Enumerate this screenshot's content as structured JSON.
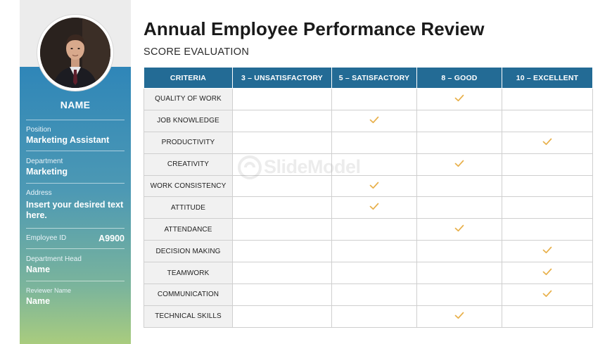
{
  "sidebar": {
    "name_heading": "NAME",
    "fields": [
      {
        "label": "Position",
        "value": "Marketing Assistant"
      },
      {
        "label": "Department",
        "value": "Marketing"
      },
      {
        "label": "Address",
        "value": "Insert your desired text here."
      },
      {
        "label": "Employee ID",
        "value": "A9900"
      },
      {
        "label": "Department Head",
        "value": "Name"
      },
      {
        "label": "Reviewer Name",
        "value": "Name"
      }
    ]
  },
  "header": {
    "title": "Annual Employee Performance Review",
    "subtitle": "SCORE EVALUATION"
  },
  "table": {
    "columns": [
      "CRITERIA",
      "3 – UNSATISFACTORY",
      "5 – SATISFACTORY",
      "8 – GOOD",
      "10 – EXCELLENT"
    ],
    "rows": [
      {
        "criteria": "QUALITY OF WORK",
        "rating_column": 3
      },
      {
        "criteria": "JOB KNOWLEDGE",
        "rating_column": 2
      },
      {
        "criteria": "PRODUCTIVITY",
        "rating_column": 4
      },
      {
        "criteria": "CREATIVITY",
        "rating_column": 3
      },
      {
        "criteria": "WORK CONSISTENCY",
        "rating_column": 2
      },
      {
        "criteria": "ATTITUDE",
        "rating_column": 2
      },
      {
        "criteria": "ATTENDANCE",
        "rating_column": 3
      },
      {
        "criteria": "DECISION MAKING",
        "rating_column": 4
      },
      {
        "criteria": "TEAMWORK",
        "rating_column": 4
      },
      {
        "criteria": "COMMUNICATION",
        "rating_column": 4
      },
      {
        "criteria": "TECHNICAL SKILLS",
        "rating_column": 3
      }
    ]
  },
  "watermark": {
    "text": "SlideModel"
  },
  "colors": {
    "header_fill": "#236b95",
    "check": "#e8b04a",
    "criteria_fill": "#f1f1f1"
  },
  "icons": {
    "rating": "checkmark-icon",
    "photo": "employee-photo"
  }
}
